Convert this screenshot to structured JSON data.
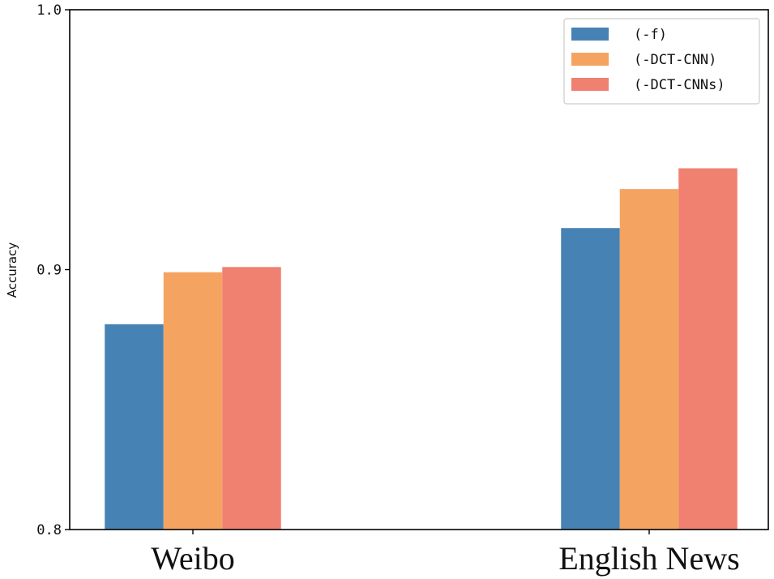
{
  "chart_data": {
    "type": "bar",
    "title": "",
    "xlabel": "",
    "ylabel": "Accuracy",
    "ylim": [
      0.8,
      1.0
    ],
    "yticks": [
      "0.8",
      "0.9",
      "1.0"
    ],
    "grid": false,
    "legend_position": "top-right",
    "categories": [
      "Weibo",
      "English News"
    ],
    "series": [
      {
        "name": "(-f)",
        "color": "#4682b4",
        "values": [
          0.879,
          0.916
        ]
      },
      {
        "name": "(-DCT-CNN)",
        "color": "#f4a460",
        "values": [
          0.899,
          0.931
        ]
      },
      {
        "name": "(-DCT-CNNs)",
        "color": "#f08070",
        "values": [
          0.901,
          0.939
        ]
      }
    ]
  }
}
